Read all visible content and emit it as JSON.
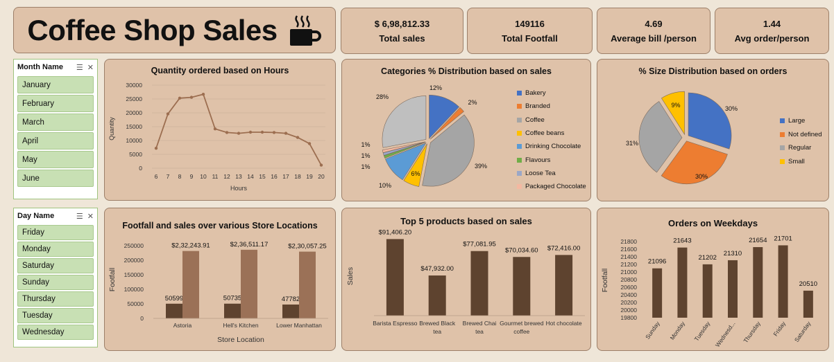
{
  "header": {
    "title": "Coffee Shop Sales",
    "icon": "coffee-cup-icon"
  },
  "kpis": [
    {
      "value": "$  6,98,812.33",
      "label": "Total sales"
    },
    {
      "value": "149116",
      "label": "Total Footfall"
    },
    {
      "value": "4.69",
      "label": "Average bill /person"
    },
    {
      "value": "1.44",
      "label": "Avg order/person"
    }
  ],
  "month_slicer": {
    "title": "Month Name",
    "items": [
      "January",
      "February",
      "March",
      "April",
      "May",
      "June"
    ]
  },
  "day_slicer": {
    "title": "Day Name",
    "items": [
      "Friday",
      "Monday",
      "Saturday",
      "Sunday",
      "Thursday",
      "Tuesday",
      "Wednesday"
    ]
  },
  "colors": {
    "brown_dark": "#5e432f",
    "brown_light": "#9b7157",
    "line": "#9c6e50",
    "panel": "#dfc2a9"
  },
  "chart_data": [
    {
      "id": "hours",
      "type": "line",
      "title": "Quantity ordered based on Hours",
      "xlabel": "Hours",
      "ylabel": "Quantity",
      "x": [
        "6",
        "7",
        "8",
        "9",
        "10",
        "11",
        "12",
        "13",
        "14",
        "15",
        "16",
        "17",
        "18",
        "19",
        "20"
      ],
      "values": [
        7200,
        19600,
        25300,
        25600,
        26700,
        14200,
        12900,
        12600,
        13000,
        13000,
        12900,
        12600,
        11100,
        8900,
        1100
      ],
      "ylim": [
        0,
        30000
      ],
      "yticks": [
        "30000",
        "25000",
        "20000",
        "15000",
        "10000",
        "5000",
        "0"
      ],
      "grid": true
    },
    {
      "id": "categories",
      "type": "pie",
      "title": "Categories % Distribution based on sales",
      "labels": [
        "Bakery",
        "Branded",
        "Coffee",
        "Coffee beans",
        "Drinking Chocolate",
        "Flavours",
        "Loose Tea",
        "Packaged Chocolate"
      ],
      "values": [
        12,
        2,
        39,
        6,
        10,
        1,
        1,
        1
      ],
      "data_labels": [
        "12%",
        "2%",
        "39%",
        "6%",
        "10%",
        "1%",
        "1%",
        "1%"
      ],
      "extra_slice": {
        "value": 28,
        "label": "28%"
      },
      "colors": [
        "#4472c4",
        "#ed7d31",
        "#a5a5a5",
        "#ffc000",
        "#5b9bd5",
        "#70ad47",
        "#9aa7c7",
        "#f4b8a1",
        "#bfbfbf"
      ]
    },
    {
      "id": "sizes",
      "type": "pie",
      "title": "% Size Distribution based on orders",
      "labels": [
        "Large",
        "Not defined",
        "Regular",
        "Small"
      ],
      "values": [
        30,
        30,
        31,
        9
      ],
      "data_labels": [
        "30%",
        "30%",
        "31%",
        "9%"
      ],
      "colors": [
        "#4472c4",
        "#ed7d31",
        "#a5a5a5",
        "#ffc000"
      ]
    },
    {
      "id": "locations",
      "type": "bar",
      "title": "Footfall and sales over various Store Locations",
      "xlabel": "Store Location",
      "ylabel": "Footfall",
      "categories": [
        "Astoria",
        "Hell's Kitchen",
        "Lower Manhattan"
      ],
      "series": [
        {
          "values": [
            50599,
            50735,
            47782
          ],
          "labels": [
            "50599",
            "50735",
            "47782"
          ]
        },
        {
          "values": [
            232243.91,
            236511.17,
            230057.25
          ],
          "labels": [
            "$2,32,243.91",
            "$2,36,511.17",
            "$2,30,057.25"
          ]
        }
      ],
      "ylim": [
        0,
        260000
      ],
      "yticks": [
        "250000",
        "200000",
        "150000",
        "100000",
        "50000",
        "0"
      ]
    },
    {
      "id": "products",
      "type": "bar",
      "title": "Top 5 products based on sales",
      "ylabel": "Sales",
      "categories": [
        "Barista Espresso",
        "Brewed Black tea",
        "Brewed Chai tea",
        "Gourmet brewed coffee",
        "Hot chocolate"
      ],
      "values": [
        91406.2,
        47932,
        77081.95,
        70034.6,
        72416
      ],
      "data_labels": [
        "$91,406.20",
        "$47,932.00",
        "$77,081.95",
        "$70,034.60",
        "$72,416.00"
      ],
      "ylim": [
        0,
        100000
      ]
    },
    {
      "id": "weekdays",
      "type": "bar",
      "title": "Orders on Weekdays",
      "ylabel": "Footfall",
      "categories": [
        "Sunday",
        "Monday",
        "Tuesday",
        "Wednesd...",
        "Thursday",
        "Friday",
        "Saturday"
      ],
      "values": [
        21096,
        21643,
        21202,
        21310,
        21654,
        21701,
        20510
      ],
      "data_labels": [
        "21096",
        "21643",
        "21202",
        "21310",
        "21654",
        "21701",
        "20510"
      ],
      "ylim": [
        19800,
        21800
      ],
      "yticks": [
        "21800",
        "21600",
        "21400",
        "21200",
        "21000",
        "20800",
        "20600",
        "20400",
        "20200",
        "20000",
        "19800"
      ]
    }
  ]
}
